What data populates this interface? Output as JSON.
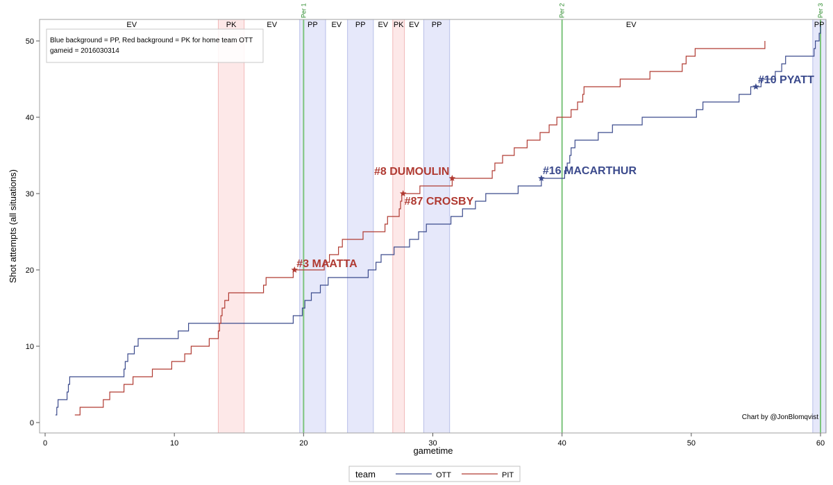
{
  "chart_data": {
    "type": "line",
    "xlabel": "gametime",
    "ylabel": "Shot attempts (all situations)",
    "xlim": [
      0,
      60
    ],
    "ylim": [
      0,
      52
    ],
    "xticks": [
      0,
      10,
      20,
      30,
      40,
      50,
      60
    ],
    "yticks": [
      0,
      10,
      20,
      30,
      40,
      50
    ],
    "info_lines": [
      "Blue background = PP, Red background = PK for home team OTT",
      "gameid = 2016030314"
    ],
    "credit": "Chart by @JonBlomqvist",
    "legend": {
      "title": "team",
      "position": "bottom"
    },
    "periods": [
      {
        "label": "Per 1",
        "x": 20
      },
      {
        "label": "Per 2",
        "x": 40
      },
      {
        "label": "Per 3",
        "x": 60
      }
    ],
    "situations": [
      {
        "label": "EV",
        "start": 0,
        "end": 13.4,
        "type": "EV"
      },
      {
        "label": "PK",
        "start": 13.4,
        "end": 15.4,
        "type": "PK"
      },
      {
        "label": "EV",
        "start": 15.4,
        "end": 19.7,
        "type": "EV"
      },
      {
        "label": "PP",
        "start": 19.7,
        "end": 21.7,
        "type": "PP"
      },
      {
        "label": "EV",
        "start": 21.7,
        "end": 23.4,
        "type": "EV"
      },
      {
        "label": "PP",
        "start": 23.4,
        "end": 25.4,
        "type": "PP"
      },
      {
        "label": "EV",
        "start": 25.4,
        "end": 26.9,
        "type": "EV"
      },
      {
        "label": "PK",
        "start": 26.9,
        "end": 27.8,
        "type": "PK"
      },
      {
        "label": "EV",
        "start": 27.8,
        "end": 29.3,
        "type": "EV"
      },
      {
        "label": "PP",
        "start": 29.3,
        "end": 31.3,
        "type": "PP"
      },
      {
        "label": "EV",
        "start": 31.3,
        "end": 59.4,
        "type": "EV"
      },
      {
        "label": "PP",
        "start": 59.4,
        "end": 60.4,
        "type": "PP"
      }
    ],
    "series": [
      {
        "name": "OTT",
        "color": "#3b4a8c",
        "points": [
          [
            0.8,
            1
          ],
          [
            0.9,
            2
          ],
          [
            1.0,
            3
          ],
          [
            1.7,
            4
          ],
          [
            1.8,
            5
          ],
          [
            1.9,
            6
          ],
          [
            6.1,
            7
          ],
          [
            6.2,
            8
          ],
          [
            6.4,
            9
          ],
          [
            6.9,
            10
          ],
          [
            7.2,
            11
          ],
          [
            10.3,
            12
          ],
          [
            11.1,
            13
          ],
          [
            19.2,
            14
          ],
          [
            19.9,
            15
          ],
          [
            20.1,
            16
          ],
          [
            20.6,
            17
          ],
          [
            21.3,
            18
          ],
          [
            21.9,
            19
          ],
          [
            25.0,
            20
          ],
          [
            25.6,
            21
          ],
          [
            26.0,
            22
          ],
          [
            27.0,
            23
          ],
          [
            28.2,
            24
          ],
          [
            28.9,
            25
          ],
          [
            29.5,
            26
          ],
          [
            31.4,
            27
          ],
          [
            32.3,
            28
          ],
          [
            33.3,
            29
          ],
          [
            34.1,
            30
          ],
          [
            36.6,
            31
          ],
          [
            38.4,
            32
          ],
          [
            40.2,
            33
          ],
          [
            40.4,
            34
          ],
          [
            40.6,
            35
          ],
          [
            40.7,
            36
          ],
          [
            41.0,
            37
          ],
          [
            42.8,
            38
          ],
          [
            43.9,
            39
          ],
          [
            46.2,
            40
          ],
          [
            50.4,
            41
          ],
          [
            50.9,
            42
          ],
          [
            53.7,
            43
          ],
          [
            54.6,
            44
          ],
          [
            55.4,
            45
          ],
          [
            56.5,
            46
          ],
          [
            57.0,
            47
          ],
          [
            57.3,
            48
          ],
          [
            59.5,
            49
          ],
          [
            59.6,
            50
          ],
          [
            59.9,
            51
          ],
          [
            60.0,
            52
          ]
        ],
        "goals": [
          {
            "x": 38.4,
            "y": 32,
            "label": "#16 MACARTHUR"
          },
          {
            "x": 55.0,
            "y": 44,
            "label": "#10 PYATT"
          }
        ]
      },
      {
        "name": "PIT",
        "color": "#b03a32",
        "points": [
          [
            2.3,
            1
          ],
          [
            2.7,
            2
          ],
          [
            4.5,
            3
          ],
          [
            5.0,
            4
          ],
          [
            6.1,
            5
          ],
          [
            6.8,
            6
          ],
          [
            8.3,
            7
          ],
          [
            9.8,
            8
          ],
          [
            10.8,
            9
          ],
          [
            11.3,
            10
          ],
          [
            12.7,
            11
          ],
          [
            13.4,
            12
          ],
          [
            13.5,
            13
          ],
          [
            13.6,
            14
          ],
          [
            13.7,
            15
          ],
          [
            13.9,
            16
          ],
          [
            14.2,
            17
          ],
          [
            16.9,
            18
          ],
          [
            17.1,
            19
          ],
          [
            19.2,
            20
          ],
          [
            21.6,
            21
          ],
          [
            22.0,
            22
          ],
          [
            22.7,
            23
          ],
          [
            23.0,
            24
          ],
          [
            24.6,
            25
          ],
          [
            26.3,
            26
          ],
          [
            26.5,
            27
          ],
          [
            27.4,
            28
          ],
          [
            27.5,
            29
          ],
          [
            27.6,
            30
          ],
          [
            29.0,
            31
          ],
          [
            31.5,
            32
          ],
          [
            34.6,
            33
          ],
          [
            34.8,
            34
          ],
          [
            35.4,
            35
          ],
          [
            36.3,
            36
          ],
          [
            37.3,
            37
          ],
          [
            38.3,
            38
          ],
          [
            39.0,
            39
          ],
          [
            39.6,
            40
          ],
          [
            40.7,
            41
          ],
          [
            41.2,
            42
          ],
          [
            41.6,
            43
          ],
          [
            41.7,
            44
          ],
          [
            44.5,
            45
          ],
          [
            46.8,
            46
          ],
          [
            49.3,
            47
          ],
          [
            49.6,
            48
          ],
          [
            50.3,
            49
          ],
          [
            55.7,
            50
          ]
        ],
        "goals": [
          {
            "x": 19.3,
            "y": 20,
            "label": "#3 MAATTA"
          },
          {
            "x": 27.7,
            "y": 30,
            "label": "#87 CROSBY"
          },
          {
            "x": 31.5,
            "y": 32,
            "label": "#8 DUMOULIN"
          }
        ]
      }
    ]
  }
}
